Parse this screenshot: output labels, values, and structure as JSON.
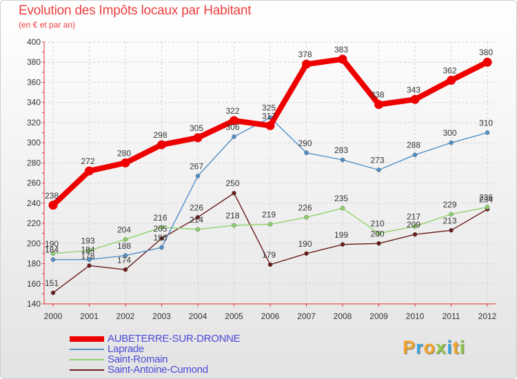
{
  "title": "Evolution des Impôts locaux par Habitant",
  "subtitle": "(en € et par an)",
  "logo": {
    "letters": [
      "P",
      "r",
      "o",
      "x",
      "i",
      "t",
      "i"
    ],
    "colors": [
      "#f2a52b",
      "#3aa6e0",
      "#f2a52b",
      "#8cc63f",
      "#3aa6e0",
      "#f2a52b",
      "#8cc63f"
    ]
  },
  "chart_data": {
    "type": "line",
    "title": "Evolution des Impôts locaux par Habitant",
    "subtitle": "(en € et par an)",
    "xlabel": "",
    "ylabel": "",
    "x": [
      "2000",
      "2001",
      "2002",
      "2003",
      "2004",
      "2005",
      "2006",
      "2007",
      "2008",
      "2009",
      "2010",
      "2011",
      "2012"
    ],
    "ylim": [
      140,
      400
    ],
    "yticks": [
      "140",
      "160",
      "180",
      "200",
      "220",
      "240",
      "260",
      "280",
      "300",
      "320",
      "340",
      "360",
      "380",
      "400"
    ],
    "grid": true,
    "legend_position": "bottom",
    "series": [
      {
        "name": "AUBETERRE-SUR-DRONNE",
        "color": "#ee0000",
        "values": [
          238,
          272,
          280,
          298,
          305,
          322,
          317,
          378,
          383,
          338,
          343,
          362,
          380
        ],
        "labels": [
          "238",
          "272",
          "280",
          "298",
          "305",
          "322",
          "317",
          "378",
          "383",
          "338",
          "343",
          "362",
          "380"
        ]
      },
      {
        "name": "Laprade",
        "color": "#4f8fca",
        "values": [
          184,
          184,
          188,
          196,
          267,
          306,
          325,
          290,
          283,
          273,
          288,
          300,
          310
        ],
        "labels": [
          "184",
          "184",
          "188",
          "196",
          "267",
          "306",
          "325",
          "290",
          "283",
          "273",
          "288",
          "300",
          "310"
        ]
      },
      {
        "name": "Saint-Romain",
        "color": "#8fd36a",
        "values": [
          190,
          193,
          204,
          216,
          214,
          218,
          219,
          226,
          235,
          210,
          217,
          229,
          236
        ],
        "labels": [
          "190",
          "193",
          "204",
          "216",
          "214",
          "218",
          "219",
          "226",
          "235",
          "210",
          "217",
          "229",
          "236"
        ]
      },
      {
        "name": "Saint-Antoine-Cumond",
        "color": "#6b1a1a",
        "values": [
          151,
          178,
          174,
          205,
          226,
          250,
          179,
          190,
          199,
          200,
          209,
          213,
          234
        ],
        "labels": [
          "151",
          "178",
          "174",
          "205",
          "226",
          "250",
          "179",
          "190",
          "199",
          "200",
          "209",
          "213",
          "234"
        ]
      }
    ]
  }
}
